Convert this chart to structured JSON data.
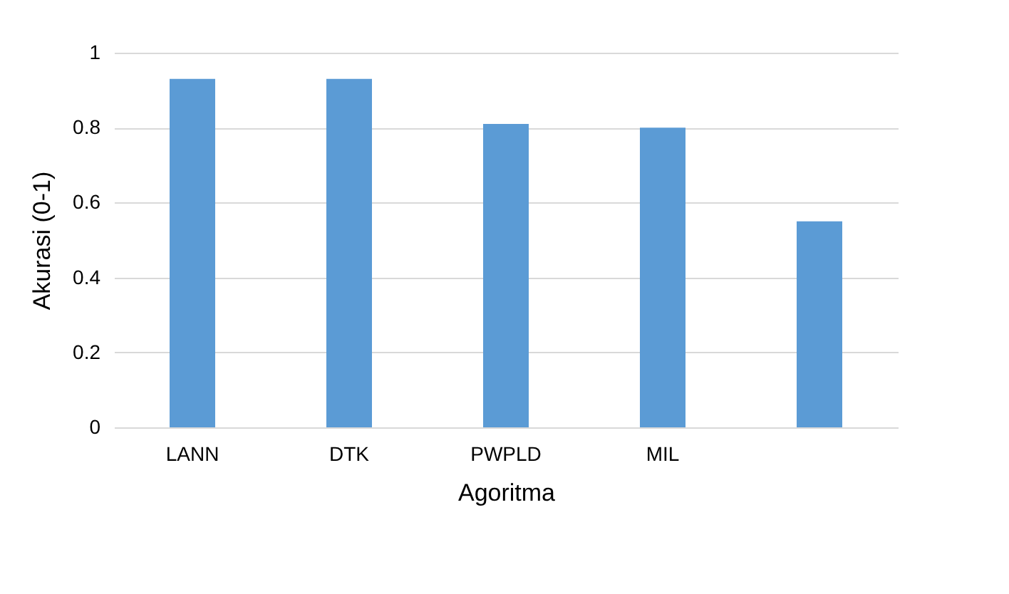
{
  "chart_data": {
    "type": "bar",
    "xlabel": "Agoritma",
    "ylabel": "Akurasi (0-1)",
    "categories": [
      "LANN",
      "DTK",
      "PWPLD",
      "MIL",
      null
    ],
    "values": [
      0.93,
      0.93,
      0.81,
      0.8,
      0.55
    ],
    "color": "#5b9bd5",
    "ylim": [
      0,
      1
    ],
    "yticks": [
      0,
      0.2,
      0.4,
      0.6,
      0.8,
      1
    ],
    "grid": "y"
  }
}
